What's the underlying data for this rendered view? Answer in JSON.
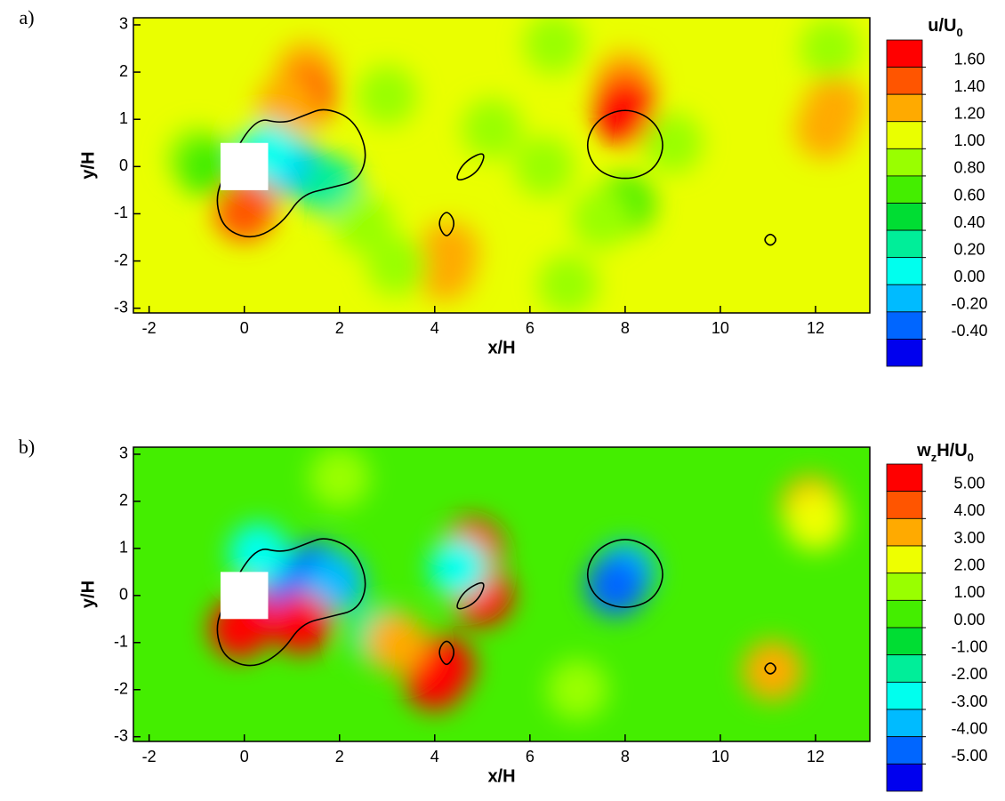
{
  "chart_data": [
    {
      "type": "contour",
      "panel_label": "a)",
      "xlabel": "x/H",
      "ylabel": "y/H",
      "colorbar_title": [
        {
          "text": "u/U"
        },
        {
          "text": "0",
          "sub": true
        }
      ],
      "xlim": [
        -2.33,
        13.14
      ],
      "ylim": [
        -3.1,
        3.15
      ],
      "xticks": [
        -2,
        0,
        2,
        4,
        6,
        8,
        10,
        12
      ],
      "yticks": [
        -3,
        -2,
        -1,
        0,
        1,
        2,
        3
      ],
      "levels": [
        {
          "value": 1.6,
          "label": "1.60"
        },
        {
          "value": 1.4,
          "label": "1.40"
        },
        {
          "value": 1.2,
          "label": "1.20"
        },
        {
          "value": 1,
          "label": "1.00"
        },
        {
          "value": 0.8,
          "label": "0.80"
        },
        {
          "value": 0.6,
          "label": "0.60"
        },
        {
          "value": 0.4,
          "label": "0.40"
        },
        {
          "value": 0.2,
          "label": "0.20"
        },
        {
          "value": 0,
          "label": "0.00"
        },
        {
          "value": -0.2,
          "label": "-0.20"
        },
        {
          "value": -0.4,
          "label": "-0.40"
        }
      ],
      "colors": [
        "#ff0000",
        "#ff5500",
        "#ffaa00",
        "#eaff00",
        "#99ff00",
        "#44ee00",
        "#00dd33",
        "#00ee99",
        "#00ffee",
        "#00bbff",
        "#0066ff",
        "#0000ee"
      ],
      "background": 1.05,
      "field": {
        "x": [
          1.3,
          1.3,
          0.9,
          0,
          0,
          8,
          8,
          8,
          4.2,
          4.3,
          12.2,
          12.4,
          12.3,
          8,
          7.5,
          3,
          3.2,
          5.2,
          6.5,
          6.8,
          9,
          -1,
          -0.8,
          1,
          0.5,
          1.8,
          6.3,
          2.5
        ],
        "y": [
          2.0,
          1.5,
          1.3,
          -0.6,
          -0.95,
          1.8,
          1.4,
          1.1,
          -2.2,
          -1.8,
          0.8,
          1.3,
          2.5,
          -0.8,
          -1.1,
          1.5,
          -2.1,
          0.8,
          2.6,
          -2.5,
          0.5,
          0.2,
          0,
          0,
          0.3,
          -0.4,
          0,
          -1.2
        ],
        "values": [
          1.35,
          1.5,
          1.3,
          1.45,
          1.55,
          1.35,
          1.5,
          1.7,
          1.3,
          1.25,
          1.25,
          1.25,
          0.9,
          0.75,
          0.85,
          0.9,
          0.9,
          0.8,
          0.9,
          0.9,
          0.85,
          0.9,
          0.7,
          -0.1,
          0.1,
          0.2,
          0.9,
          0.9
        ]
      },
      "body": {
        "x": [
          -0.5,
          0.5
        ],
        "y": [
          -0.5,
          0.5
        ]
      },
      "outlines": [
        {
          "x": [
            0.2,
            0.8,
            1.3,
            1.7,
            2.3,
            2.6,
            2.4,
            1.8,
            1.2,
            0.8,
            0.2,
            -0.4,
            -0.6,
            -0.5
          ],
          "y": [
            1.05,
            0.9,
            1.1,
            1.25,
            1.0,
            0.3,
            -0.3,
            -0.45,
            -0.6,
            -1.2,
            -1.55,
            -1.35,
            -0.8,
            -0.3
          ]
        },
        {
          "x": [
            8,
            8.6,
            8.85,
            8.6,
            8,
            7.4,
            7.15,
            7.4
          ],
          "y": [
            1.25,
            1.0,
            0.45,
            -0.1,
            -0.3,
            -0.1,
            0.45,
            1.0
          ]
        },
        {
          "x": [
            4.25,
            4.45,
            4.25,
            4.05
          ],
          "y": [
            -0.9,
            -1.2,
            -1.55,
            -1.2
          ]
        },
        {
          "x": [
            5.1,
            4.9,
            4.4,
            4.6
          ],
          "y": [
            0.35,
            -0.15,
            -0.35,
            0.1
          ]
        },
        {
          "x": [
            11.05,
            11.2,
            11.05,
            10.9
          ],
          "y": [
            -1.4,
            -1.55,
            -1.7,
            -1.55
          ]
        }
      ]
    },
    {
      "type": "contour",
      "panel_label": "b)",
      "xlabel": "x/H",
      "ylabel": "y/H",
      "colorbar_title": [
        {
          "text": "w"
        },
        {
          "text": "z",
          "sub": true
        },
        {
          "text": "H/U"
        },
        {
          "text": "0",
          "sub": true
        }
      ],
      "xlim": [
        -2.33,
        13.14
      ],
      "ylim": [
        -3.1,
        3.15
      ],
      "xticks": [
        -2,
        0,
        2,
        4,
        6,
        8,
        10,
        12
      ],
      "yticks": [
        -3,
        -2,
        -1,
        0,
        1,
        2,
        3
      ],
      "levels": [
        {
          "value": 5,
          "label": "5.00"
        },
        {
          "value": 4,
          "label": "4.00"
        },
        {
          "value": 3,
          "label": "3.00"
        },
        {
          "value": 2,
          "label": "2.00"
        },
        {
          "value": 1,
          "label": "1.00"
        },
        {
          "value": 0,
          "label": "0.00"
        },
        {
          "value": -1,
          "label": "-1.00"
        },
        {
          "value": -2,
          "label": "-2.00"
        },
        {
          "value": -3,
          "label": "-3.00"
        },
        {
          "value": -4,
          "label": "-4.00"
        },
        {
          "value": -5,
          "label": "-5.00"
        }
      ],
      "colors": [
        "#ff0000",
        "#ff5500",
        "#ffaa00",
        "#eeff00",
        "#99ff00",
        "#44ee00",
        "#00dd33",
        "#00ee99",
        "#00ffee",
        "#00bbff",
        "#0066ff",
        "#0000ee"
      ],
      "background": 0.5,
      "field": {
        "x": [
          -0.1,
          0.5,
          1,
          1.5,
          1.9,
          4.8,
          4.2,
          4,
          5,
          4.5,
          8,
          7.8,
          11.1,
          11.9,
          12,
          2.8,
          3.2,
          2,
          7,
          0.3,
          1.2
        ],
        "y": [
          -0.7,
          -0.3,
          0.2,
          0.5,
          0.3,
          1,
          -1.5,
          -1.8,
          0,
          0.6,
          0.5,
          0.2,
          -1.6,
          1.9,
          1.6,
          -0.8,
          -1,
          2.5,
          -2,
          0.9,
          -0.6
        ],
        "values": [
          6,
          5.5,
          -4.5,
          -4.5,
          -3.5,
          6,
          5,
          5,
          5.5,
          -3,
          -3.5,
          -4.2,
          3.5,
          3.5,
          2.5,
          -2,
          3,
          1.5,
          1.5,
          -3,
          5
        ]
      },
      "body": {
        "x": [
          -0.5,
          0.5
        ],
        "y": [
          -0.5,
          0.5
        ]
      },
      "outlines": [
        {
          "x": [
            0.2,
            0.8,
            1.3,
            1.7,
            2.3,
            2.6,
            2.4,
            1.8,
            1.2,
            0.8,
            0.2,
            -0.4,
            -0.6,
            -0.5
          ],
          "y": [
            1.05,
            0.9,
            1.1,
            1.25,
            1.0,
            0.3,
            -0.3,
            -0.45,
            -0.6,
            -1.2,
            -1.55,
            -1.35,
            -0.8,
            -0.3
          ]
        },
        {
          "x": [
            8,
            8.6,
            8.85,
            8.6,
            8,
            7.4,
            7.15,
            7.4
          ],
          "y": [
            1.25,
            1.0,
            0.45,
            -0.1,
            -0.3,
            -0.1,
            0.45,
            1.0
          ]
        },
        {
          "x": [
            4.25,
            4.45,
            4.25,
            4.05
          ],
          "y": [
            -0.9,
            -1.2,
            -1.55,
            -1.2
          ]
        },
        {
          "x": [
            5.1,
            4.9,
            4.4,
            4.6
          ],
          "y": [
            0.35,
            -0.15,
            -0.35,
            0.1
          ]
        },
        {
          "x": [
            11.05,
            11.2,
            11.05,
            10.9
          ],
          "y": [
            -1.4,
            -1.55,
            -1.7,
            -1.55
          ]
        }
      ]
    }
  ]
}
